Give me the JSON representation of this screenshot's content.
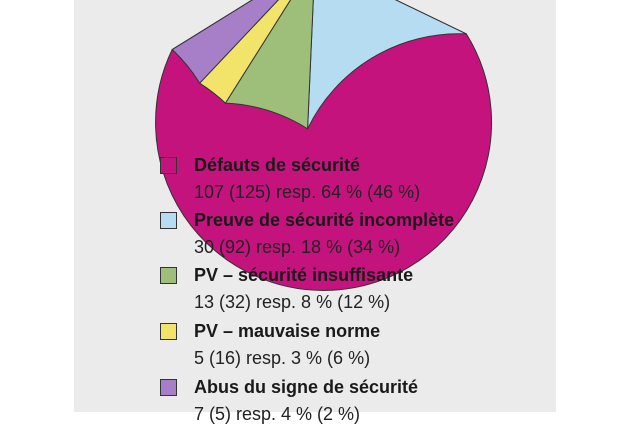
{
  "chart_data": {
    "type": "pie",
    "slices": [
      {
        "label": "Défauts de sécurité",
        "detail": "107 (125) resp. 64 % (46 %)",
        "value": 64,
        "color": "#c5137e"
      },
      {
        "label": "Preuve de sécurité incomplète",
        "detail": "30 (92) resp. 18 % (34 %)",
        "value": 18,
        "color": "#b5dcf0"
      },
      {
        "label": "PV – sécurité insuffisante",
        "detail": "13 (32) resp. 8 % (12 %)",
        "value": 8,
        "color": "#9dbf7a"
      },
      {
        "label": "PV – mauvaise norme",
        "detail": "5 (16) resp. 3 % (6 %)",
        "value": 3,
        "color": "#f2e36a"
      },
      {
        "label": "Abus du signe de sécurité",
        "detail": "7 (5) resp. 4 % (2 %)",
        "value": 4,
        "color": "#a77fc9"
      }
    ],
    "legend_position": "bottom"
  }
}
